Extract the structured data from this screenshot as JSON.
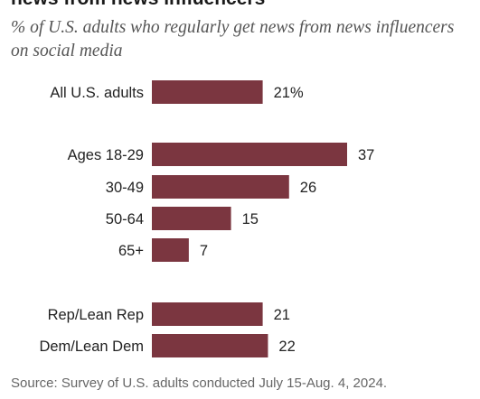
{
  "header": {
    "title_partial": "news from news influencers",
    "subtitle": "% of U.S. adults who regularly get news from news influencers on social media"
  },
  "chart_data": {
    "type": "bar",
    "orientation": "horizontal",
    "categories": [
      "All U.S. adults",
      "Ages 18-29",
      "30-49",
      "50-64",
      "65+",
      "Rep/Lean Rep",
      "Dem/Lean Dem"
    ],
    "values": [
      21,
      37,
      26,
      15,
      7,
      21,
      22
    ],
    "data_labels": [
      "21%",
      "37",
      "26",
      "15",
      "7",
      "21",
      "22"
    ],
    "groups": [
      {
        "categories": [
          "All U.S. adults"
        ]
      },
      {
        "categories": [
          "Ages 18-29",
          "30-49",
          "50-64",
          "65+"
        ]
      },
      {
        "categories": [
          "Rep/Lean Rep",
          "Dem/Lean Dem"
        ]
      }
    ],
    "bar_color": "#7b3640",
    "xlim": [
      0,
      37
    ],
    "grid": false,
    "legend": "none"
  },
  "footer": {
    "source": "Source: Survey of U.S. adults conducted July 15-Aug. 4, 2024."
  }
}
